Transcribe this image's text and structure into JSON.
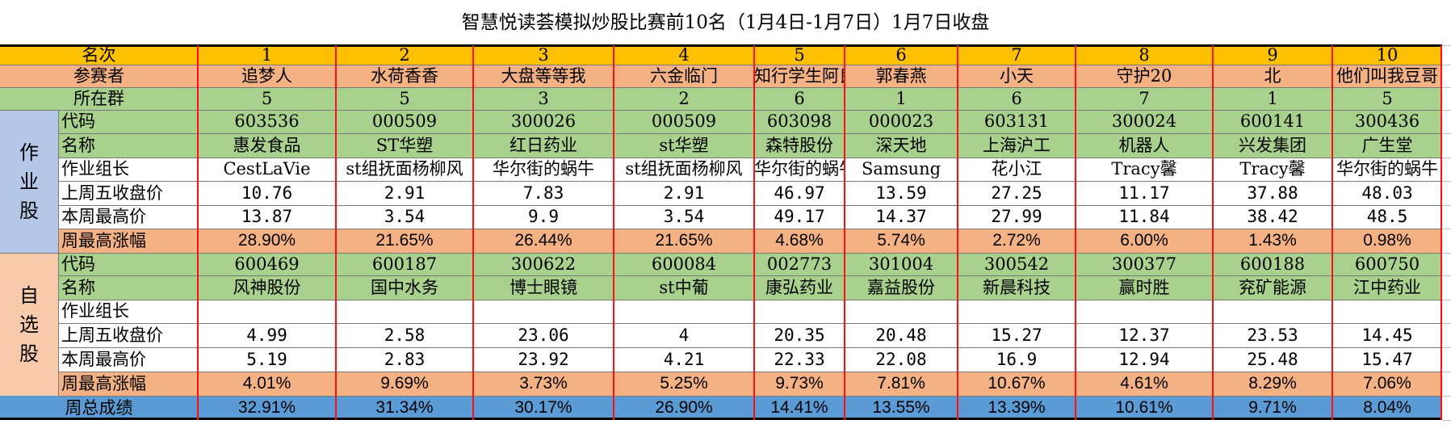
{
  "title": "智慧悦读荟模拟炒股比赛前10名（1月4日-1月7日）1月7日收盘",
  "colors": {
    "header_orange": "#ffc000",
    "salmon": "#f4b183",
    "green": "#a9d18e",
    "lavender": "#b4c7e7",
    "peach": "#f8cbad",
    "blue": "#5b9bd5",
    "divider_red": "#ff1010"
  },
  "labels": {
    "rank": "名次",
    "participant": "参赛者",
    "group": "所在群",
    "code": "代码",
    "name": "名称",
    "leader": "作业组长",
    "prev_close": "上周五收盘价",
    "week_high": "本周最高价",
    "max_gain": "周最高涨幅",
    "total": "周总成绩"
  },
  "sections": {
    "homework": "作业股",
    "chosen": "自选股"
  },
  "rows": {
    "rank": [
      "1",
      "2",
      "3",
      "4",
      "5",
      "6",
      "7",
      "8",
      "9",
      "10"
    ],
    "participant": [
      "追梦人",
      "水荷香香",
      "大盘等等我",
      "六金临门",
      "知行学生阿良",
      "郭春燕",
      "小天",
      "守护20",
      "北",
      "他们叫我豆哥"
    ],
    "group": [
      "5",
      "5",
      "3",
      "2",
      "6",
      "1",
      "6",
      "7",
      "1",
      "5"
    ],
    "hw_code": [
      "603536",
      "000509",
      "300026",
      "000509",
      "603098",
      "000023",
      "603131",
      "300024",
      "600141",
      "300436"
    ],
    "hw_name": [
      "惠发食品",
      "ST华塑",
      "红日药业",
      "st华塑",
      "森特股份",
      "深天地",
      "上海沪工",
      "机器人",
      "兴发集团",
      "广生堂"
    ],
    "hw_leader": [
      "CestLaVie",
      "st组抚面杨柳风",
      "华尔街的蜗牛",
      "st组抚面杨柳风",
      "华尔街的蜗牛",
      "Samsung",
      "花小江",
      "Tracy馨",
      "Tracy馨",
      "华尔街的蜗牛"
    ],
    "hw_prev": [
      "10.76",
      "2.91",
      "7.83",
      "2.91",
      "46.97",
      "13.59",
      "27.25",
      "11.17",
      "37.88",
      "48.03"
    ],
    "hw_high": [
      "13.87",
      "3.54",
      "9.9",
      "3.54",
      "49.17",
      "14.37",
      "27.99",
      "11.84",
      "38.42",
      "48.5"
    ],
    "hw_gain": [
      "28.90%",
      "21.65%",
      "26.44%",
      "21.65%",
      "4.68%",
      "5.74%",
      "2.72%",
      "6.00%",
      "1.43%",
      "0.98%"
    ],
    "ch_code": [
      "600469",
      "600187",
      "300622",
      "600084",
      "002773",
      "301004",
      "300542",
      "300377",
      "600188",
      "600750"
    ],
    "ch_name": [
      "风神股份",
      "国中水务",
      "博士眼镜",
      "st中葡",
      "康弘药业",
      "嘉益股份",
      "新晨科技",
      "赢时胜",
      "兖矿能源",
      "江中药业"
    ],
    "ch_leader": [
      "",
      "",
      "",
      "",
      "",
      "",
      "",
      "",
      "",
      ""
    ],
    "ch_prev": [
      "4.99",
      "2.58",
      "23.06",
      "4",
      "20.35",
      "20.48",
      "15.27",
      "12.37",
      "23.53",
      "14.45"
    ],
    "ch_high": [
      "5.19",
      "2.83",
      "23.92",
      "4.21",
      "22.33",
      "22.08",
      "16.9",
      "12.94",
      "25.48",
      "15.47"
    ],
    "ch_gain": [
      "4.01%",
      "9.69%",
      "3.73%",
      "5.25%",
      "9.73%",
      "7.81%",
      "10.67%",
      "4.61%",
      "8.29%",
      "7.06%"
    ],
    "total": [
      "32.91%",
      "31.34%",
      "30.17%",
      "26.90%",
      "14.41%",
      "13.55%",
      "13.39%",
      "10.61%",
      "9.71%",
      "8.04%"
    ]
  }
}
